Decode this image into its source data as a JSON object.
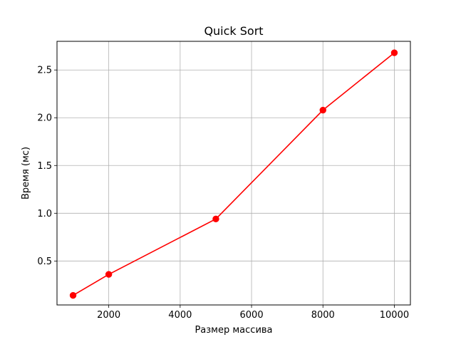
{
  "chart_data": {
    "type": "line",
    "title": "Quick Sort",
    "xlabel": "Размер массива",
    "ylabel": "Время (мс)",
    "grid": true,
    "xlim": [
      550,
      10450
    ],
    "ylim": [
      0.04,
      2.8
    ],
    "xticks": [
      2000,
      4000,
      6000,
      8000,
      10000
    ],
    "yticks": [
      0.5,
      1.0,
      1.5,
      2.0,
      2.5
    ],
    "xtick_labels": [
      "2000",
      "4000",
      "6000",
      "8000",
      "10000"
    ],
    "ytick_labels": [
      "0.5",
      "1.0",
      "1.5",
      "2.0",
      "2.5"
    ],
    "series": [
      {
        "color": "#ff0000",
        "marker": "circle",
        "x": [
          1000,
          2000,
          5000,
          8000,
          10000
        ],
        "y": [
          0.14,
          0.36,
          0.94,
          2.08,
          2.68
        ]
      }
    ]
  }
}
